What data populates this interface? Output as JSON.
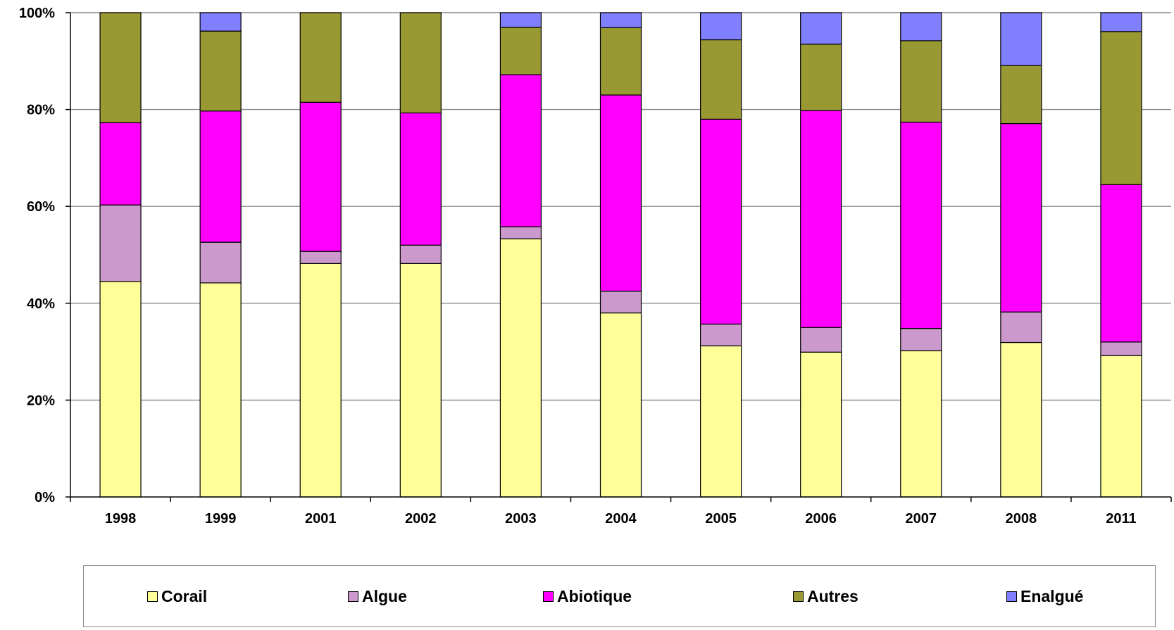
{
  "chart_data": {
    "type": "bar",
    "stacked": true,
    "percent": true,
    "categories": [
      "1998",
      "1999",
      "2001",
      "2002",
      "2003",
      "2004",
      "2005",
      "2006",
      "2007",
      "2008",
      "2011"
    ],
    "series": [
      {
        "name": "Corail",
        "color": "#FFFF99",
        "values": [
          44.5,
          44.2,
          48.2,
          48.2,
          53.3,
          38.0,
          31.2,
          29.9,
          30.2,
          31.9,
          29.2
        ]
      },
      {
        "name": "Algue",
        "color": "#CC99CC",
        "values": [
          15.8,
          8.4,
          2.5,
          3.8,
          2.5,
          4.5,
          4.5,
          5.1,
          4.6,
          6.3,
          2.8
        ]
      },
      {
        "name": "Abiotique",
        "color": "#FF00FF",
        "values": [
          17.0,
          27.1,
          30.8,
          27.3,
          31.4,
          40.5,
          42.3,
          44.8,
          42.6,
          38.9,
          32.5
        ]
      },
      {
        "name": "Autres",
        "color": "#999933",
        "values": [
          22.7,
          16.5,
          18.5,
          20.7,
          9.8,
          13.9,
          16.4,
          13.7,
          16.8,
          12.0,
          31.6
        ]
      },
      {
        "name": "Enalgué",
        "color": "#8080FF",
        "values": [
          0,
          3.8,
          0,
          0,
          3.0,
          3.1,
          5.6,
          6.5,
          5.8,
          10.9,
          3.9
        ]
      }
    ],
    "yticks": [
      "0%",
      "20%",
      "40%",
      "60%",
      "80%",
      "100%"
    ],
    "ylim": [
      0,
      100
    ],
    "grid": true,
    "legend_position": "bottom",
    "title": "",
    "xlabel": "",
    "ylabel": ""
  }
}
